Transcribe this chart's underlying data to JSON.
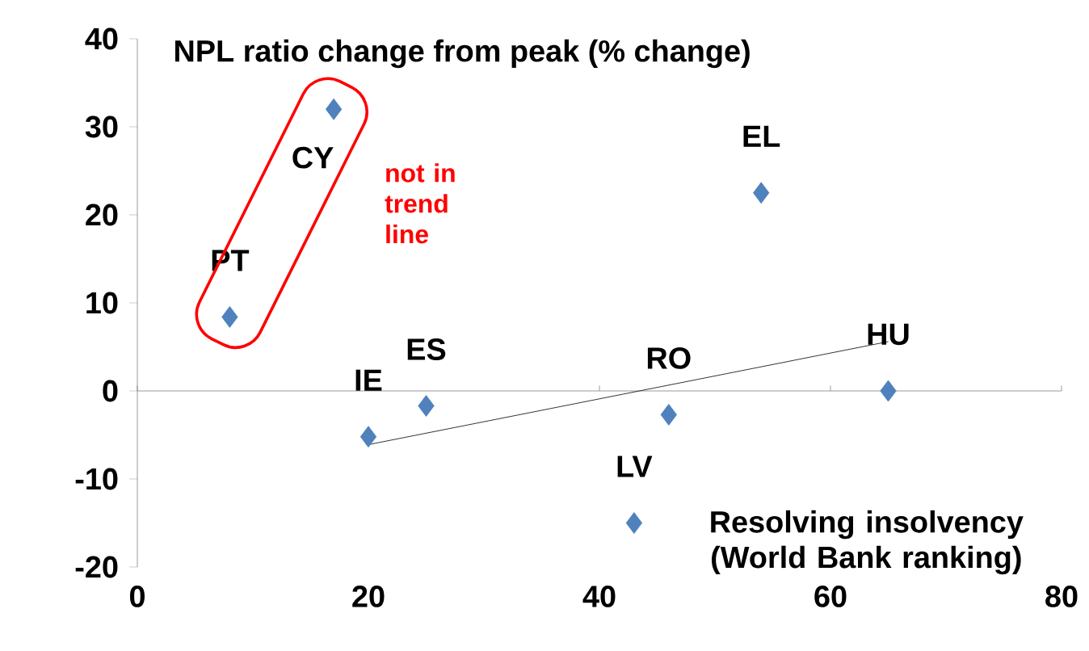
{
  "chart_data": {
    "type": "scatter",
    "ylabel": "NPL ratio change from peak (% change)",
    "xlabel": "Resolving insolvency (World Bank ranking)",
    "xlim": [
      0,
      80
    ],
    "ylim": [
      -20,
      40
    ],
    "xticks": [
      0,
      20,
      40,
      60,
      80
    ],
    "yticks": [
      -20,
      -10,
      0,
      10,
      20,
      30,
      40
    ],
    "marker": "diamond",
    "series": [
      {
        "color": "#4f81bd",
        "x": [
          8,
          17,
          20,
          25,
          43,
          46,
          54,
          65
        ],
        "values": [
          8.4,
          32,
          -5.2,
          -1.7,
          -15,
          -2.7,
          22.5,
          0
        ]
      },
      {
        "type": "line",
        "color": "#000000",
        "marker": "none",
        "x": [
          20,
          65
        ],
        "values": [
          -6.1,
          5.6
        ]
      }
    ],
    "annotations": [
      {
        "text": "PT",
        "x": 8,
        "y": 8.4
      },
      {
        "text": "CY",
        "x": 17,
        "y": 32
      },
      {
        "text": "IE",
        "x": 20,
        "y": -5.2
      },
      {
        "text": "ES",
        "x": 25,
        "y": -1.7
      },
      {
        "text": "LV",
        "x": 43,
        "y": -15
      },
      {
        "text": "RO",
        "x": 46,
        "y": -2.7
      },
      {
        "text": "EL",
        "x": 54,
        "y": 22.5
      },
      {
        "text": "HU",
        "x": 65,
        "y": 0
      },
      "not in trend line"
    ]
  }
}
